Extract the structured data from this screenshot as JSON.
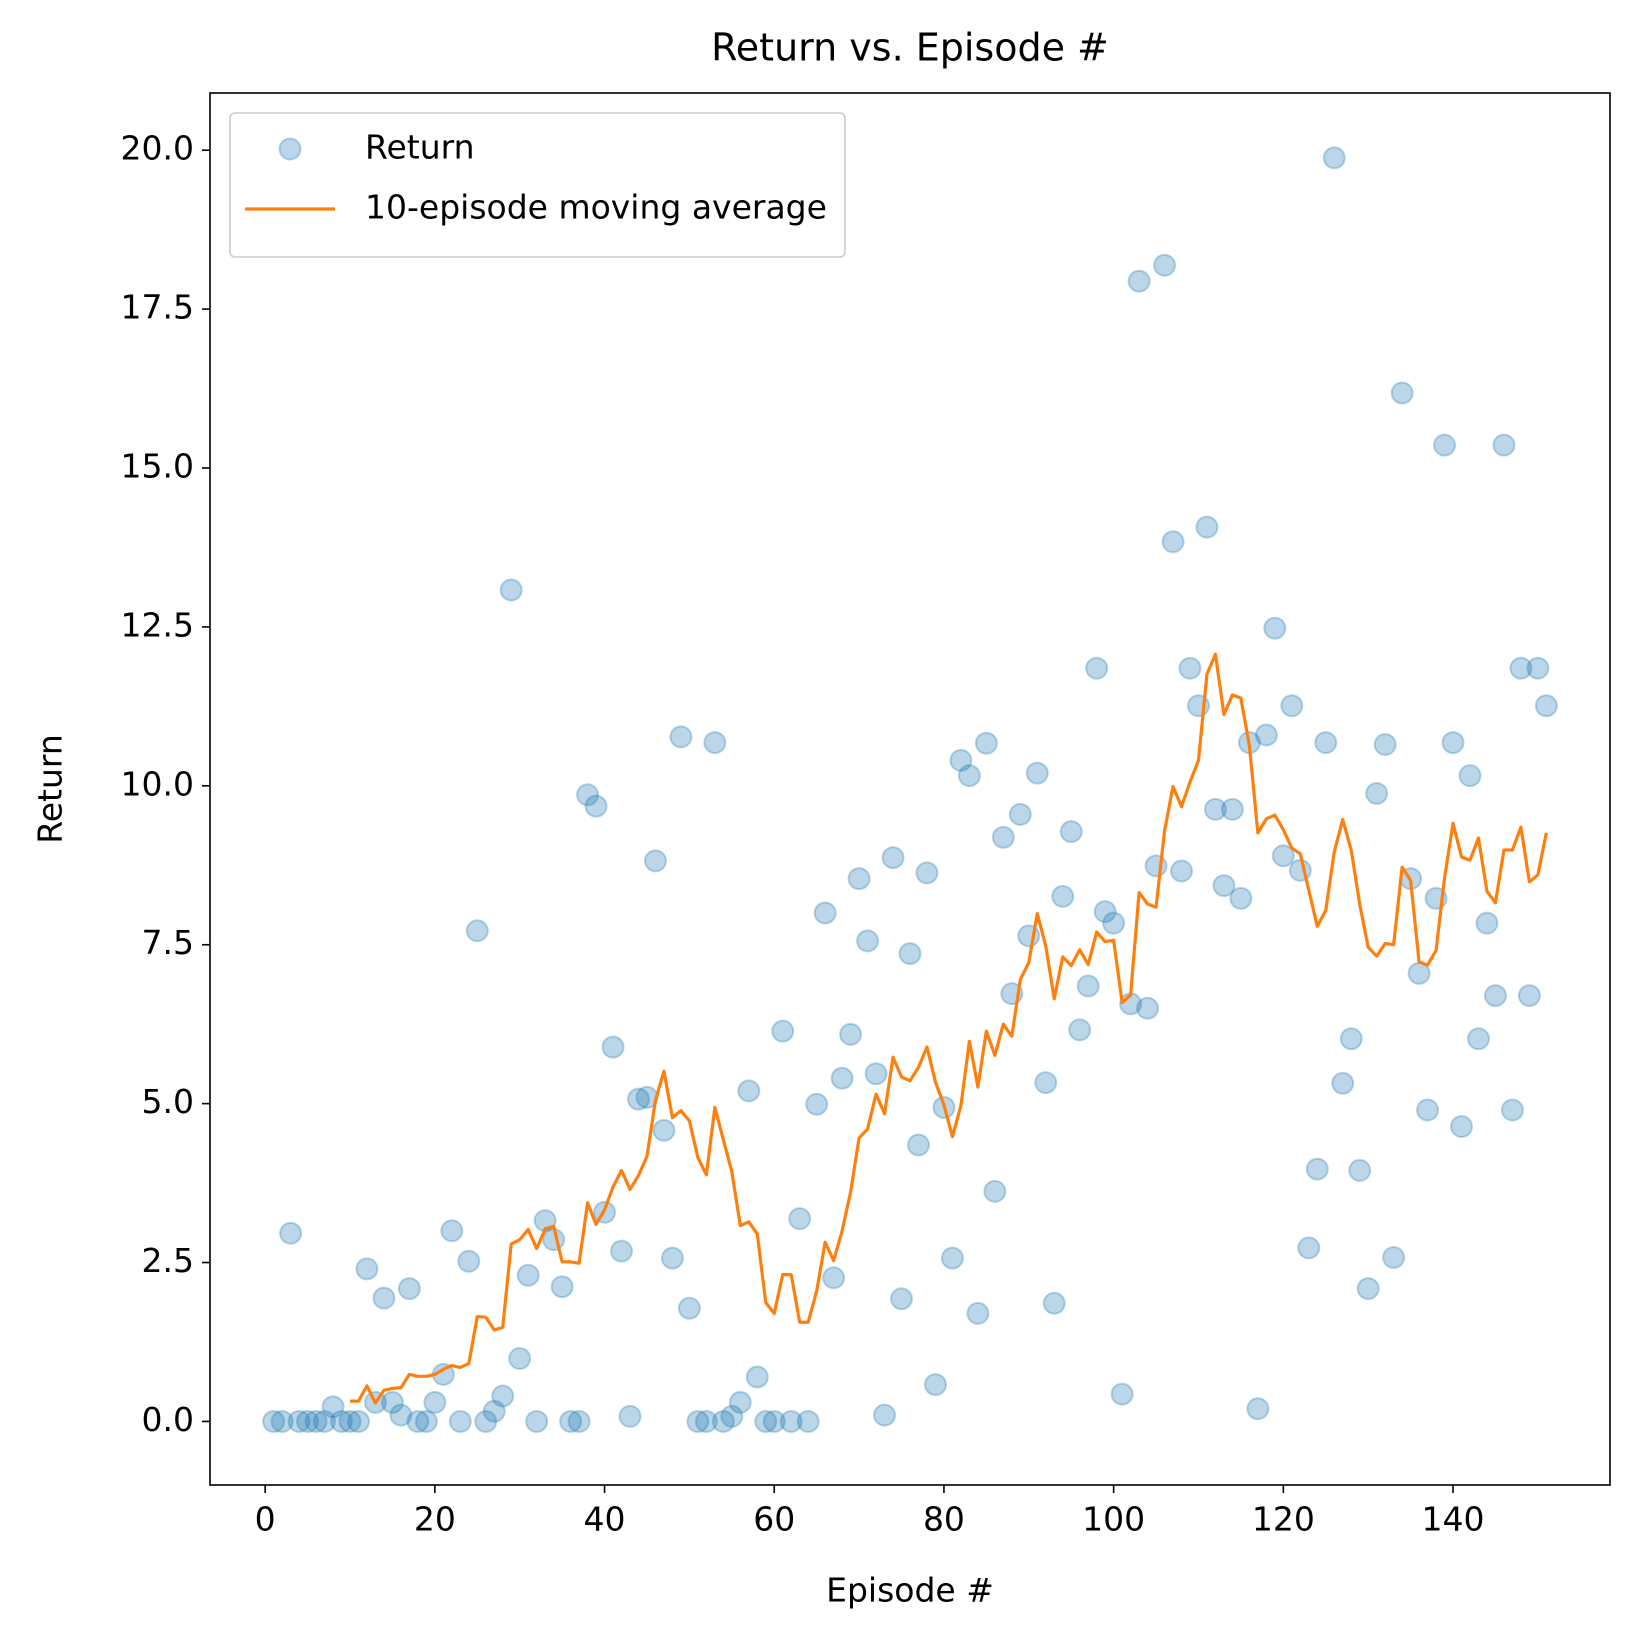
{
  "chart_data": {
    "type": "scatter",
    "title": "Return vs. Episode #",
    "x_label": "Episode #",
    "y_label": "Return",
    "xlim": [
      -6.5,
      158.5
    ],
    "ylim": [
      -1.0,
      20.9
    ],
    "xticks": [
      0,
      20,
      40,
      60,
      80,
      100,
      120,
      140
    ],
    "yticks": [
      {
        "value": 0,
        "label": "0.0"
      },
      2.5,
      {
        "value": 5,
        "label": "5.0"
      },
      7.5,
      {
        "value": 10,
        "label": "10.0"
      },
      12.5,
      {
        "value": 15,
        "label": "15.0"
      },
      17.5,
      {
        "value": 20,
        "label": "20.0"
      }
    ],
    "grid": false,
    "legend": "upper left",
    "series": [
      {
        "name": "Return",
        "type": "scatter",
        "color": "#1f77b4",
        "x": [
          1,
          2,
          3,
          4,
          5,
          6,
          7,
          8,
          9,
          10,
          11,
          12,
          13,
          14,
          15,
          16,
          17,
          18,
          19,
          20,
          21,
          22,
          23,
          24,
          25,
          26,
          27,
          28,
          29,
          30,
          31,
          32,
          33,
          34,
          35,
          36,
          37,
          38,
          39,
          40,
          41,
          42,
          43,
          44,
          45,
          46,
          47,
          48,
          49,
          50,
          51,
          52,
          53,
          54,
          55,
          56,
          57,
          58,
          59,
          60,
          61,
          62,
          63,
          64,
          65,
          66,
          67,
          68,
          69,
          70,
          71,
          72,
          73,
          74,
          75,
          76,
          77,
          78,
          79,
          80,
          81,
          82,
          83,
          84,
          85,
          86,
          87,
          88,
          89,
          90,
          91,
          92,
          93,
          94,
          95,
          96,
          97,
          98,
          99,
          100,
          101,
          102,
          103,
          104,
          105,
          106,
          107,
          108,
          109,
          110,
          111,
          112,
          113,
          114,
          115,
          116,
          117,
          118,
          119,
          120,
          121,
          122,
          123,
          124,
          125,
          126,
          127,
          128,
          129,
          130,
          131,
          132,
          133,
          134,
          135,
          136,
          137,
          138,
          139,
          140,
          141,
          142,
          143,
          144,
          145,
          146,
          147,
          148,
          149,
          150,
          151
        ],
        "values": [
          0,
          0,
          2.96,
          0,
          0,
          0,
          0,
          0.23,
          0,
          0,
          0,
          2.4,
          0.3,
          1.94,
          0.3,
          0.1,
          2.09,
          0,
          0,
          0.3,
          0.74,
          3.0,
          0,
          2.52,
          7.72,
          0,
          0.16,
          0.4,
          13.08,
          0.99,
          2.3,
          0,
          3.16,
          2.86,
          2.12,
          0,
          0,
          9.86,
          9.68,
          3.29,
          5.89,
          2.68,
          0.08,
          5.07,
          5.1,
          8.82,
          4.58,
          2.57,
          10.77,
          1.78,
          0,
          0,
          10.68,
          0,
          0.08,
          0.3,
          5.2,
          0.7,
          0,
          0,
          6.14,
          0,
          3.19,
          0,
          4.99,
          8.0,
          2.26,
          5.4,
          6.09,
          8.54,
          7.56,
          5.47,
          0.1,
          8.87,
          1.93,
          7.36,
          4.35,
          8.63,
          0.58,
          4.94,
          2.57,
          10.4,
          10.16,
          1.7,
          10.67,
          3.62,
          9.19,
          6.73,
          9.55,
          7.64,
          10.2,
          5.33,
          1.86,
          8.26,
          9.28,
          6.16,
          6.85,
          11.85,
          8.02,
          7.84,
          0.43,
          6.57,
          17.94,
          6.5,
          8.74,
          18.19,
          13.84,
          8.66,
          11.85,
          11.26,
          14.07,
          9.63,
          8.43,
          9.63,
          8.23,
          10.68,
          0.2,
          10.8,
          12.48,
          8.9,
          11.26,
          8.67,
          2.73,
          3.97,
          10.68,
          19.88,
          5.32,
          6.02,
          3.95,
          2.09,
          9.88,
          10.65,
          2.58,
          16.18,
          8.54,
          7.05,
          4.9,
          8.23,
          15.36,
          10.68,
          4.64,
          10.16,
          6.02,
          7.84,
          6.7,
          15.36,
          4.9,
          11.85,
          6.7,
          11.85,
          11.26
        ]
      },
      {
        "name": "10-episode moving average",
        "type": "line",
        "color": "#ff7f0e",
        "x": [
          10,
          11,
          12,
          13,
          14,
          15,
          16,
          17,
          18,
          19,
          20,
          21,
          22,
          23,
          24,
          25,
          26,
          27,
          28,
          29,
          30,
          31,
          32,
          33,
          34,
          35,
          36,
          37,
          38,
          39,
          40,
          41,
          42,
          43,
          44,
          45,
          46,
          47,
          48,
          49,
          50,
          51,
          52,
          53,
          54,
          55,
          56,
          57,
          58,
          59,
          60,
          61,
          62,
          63,
          64,
          65,
          66,
          67,
          68,
          69,
          70,
          71,
          72,
          73,
          74,
          75,
          76,
          77,
          78,
          79,
          80,
          81,
          82,
          83,
          84,
          85,
          86,
          87,
          88,
          89,
          90,
          91,
          92,
          93,
          94,
          95,
          96,
          97,
          98,
          99,
          100,
          101,
          102,
          103,
          104,
          105,
          106,
          107,
          108,
          109,
          110,
          111,
          112,
          113,
          114,
          115,
          116,
          117,
          118,
          119,
          120,
          121,
          122,
          123,
          124,
          125,
          126,
          127,
          128,
          129,
          130,
          131,
          132,
          133,
          134,
          135,
          136,
          137,
          138,
          139,
          140,
          141,
          142,
          143,
          144,
          145,
          146,
          147,
          148,
          149,
          150,
          151
        ],
        "values": [
          0.32,
          0.32,
          0.56,
          0.29,
          0.49,
          0.52,
          0.53,
          0.74,
          0.71,
          0.71,
          0.74,
          0.82,
          0.88,
          0.85,
          0.91,
          1.65,
          1.64,
          1.44,
          1.48,
          2.79,
          2.86,
          3.02,
          2.72,
          3.03,
          3.07,
          2.51,
          2.51,
          2.49,
          3.44,
          3.1,
          3.33,
          3.69,
          3.95,
          3.65,
          3.87,
          4.17,
          5.05,
          5.51,
          4.78,
          4.89,
          4.73,
          4.15,
          3.88,
          4.94,
          4.43,
          3.93,
          3.08,
          3.14,
          2.95,
          1.87,
          1.7,
          2.31,
          2.31,
          1.56,
          1.56,
          2.05,
          2.82,
          2.53,
          3.0,
          3.61,
          4.46,
          4.6,
          5.15,
          4.84,
          5.73,
          5.42,
          5.36,
          5.57,
          5.89,
          5.34,
          4.98,
          4.48,
          4.97,
          5.98,
          5.26,
          6.14,
          5.76,
          6.25,
          6.06,
          6.95,
          7.22,
          7.99,
          7.48,
          6.65,
          7.31,
          7.17,
          7.42,
          7.19,
          7.7,
          7.55,
          7.57,
          6.59,
          6.71,
          8.32,
          8.14,
          8.09,
          9.29,
          9.99,
          9.67,
          10.06,
          10.4,
          11.76,
          12.07,
          11.12,
          11.43,
          11.38,
          10.63,
          9.26,
          9.48,
          9.54,
          9.31,
          9.02,
          8.93,
          8.36,
          7.79,
          8.04,
          8.96,
          9.47,
          8.99,
          8.14,
          7.46,
          7.32,
          7.52,
          7.5,
          8.72,
          8.51,
          7.23,
          7.18,
          7.41,
          8.55,
          9.41,
          8.88,
          8.83,
          9.18,
          8.34,
          8.16,
          8.99,
          8.99,
          9.35,
          8.49,
          8.6,
          9.26
        ]
      }
    ]
  }
}
